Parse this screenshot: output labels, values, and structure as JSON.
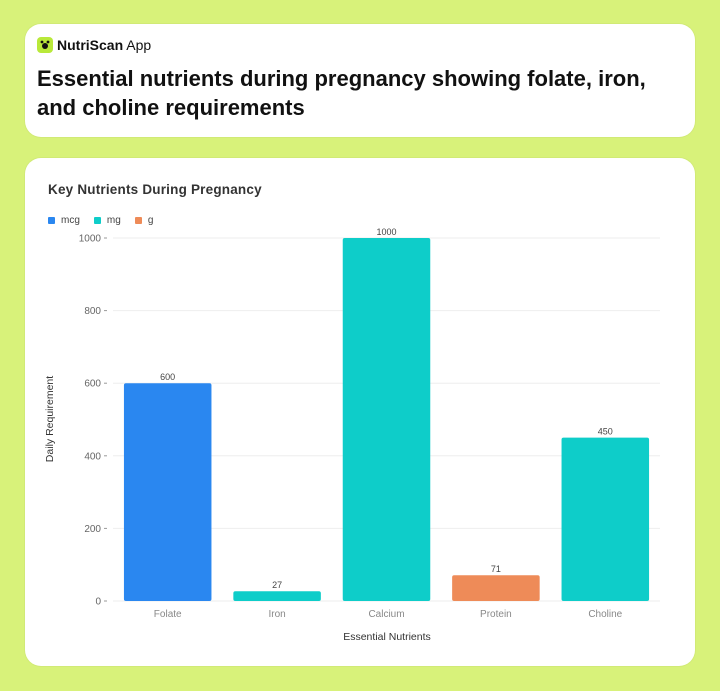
{
  "header": {
    "app_name_bold": "NutriScan",
    "app_name_rest": "App",
    "headline": "Essential nutrients during pregnancy showing folate, iron, and choline requirements"
  },
  "chart_data": {
    "type": "bar",
    "title": "Key Nutrients During Pregnancy",
    "xlabel": "Essential Nutrients",
    "ylabel": "Daily Requirement",
    "ylim": [
      0,
      1000
    ],
    "yticks": [
      0,
      200,
      400,
      600,
      800,
      1000
    ],
    "categories": [
      "Folate",
      "Iron",
      "Calcium",
      "Protein",
      "Choline"
    ],
    "values": [
      600,
      27,
      1000,
      71,
      450
    ],
    "units": [
      "mcg",
      "mg",
      "mg",
      "g",
      "mg"
    ],
    "legend": [
      {
        "label": "mcg",
        "color": "#2a87f0"
      },
      {
        "label": "mg",
        "color": "#0ecdc9"
      },
      {
        "label": "g",
        "color": "#ee8b58"
      }
    ],
    "grid": true
  }
}
